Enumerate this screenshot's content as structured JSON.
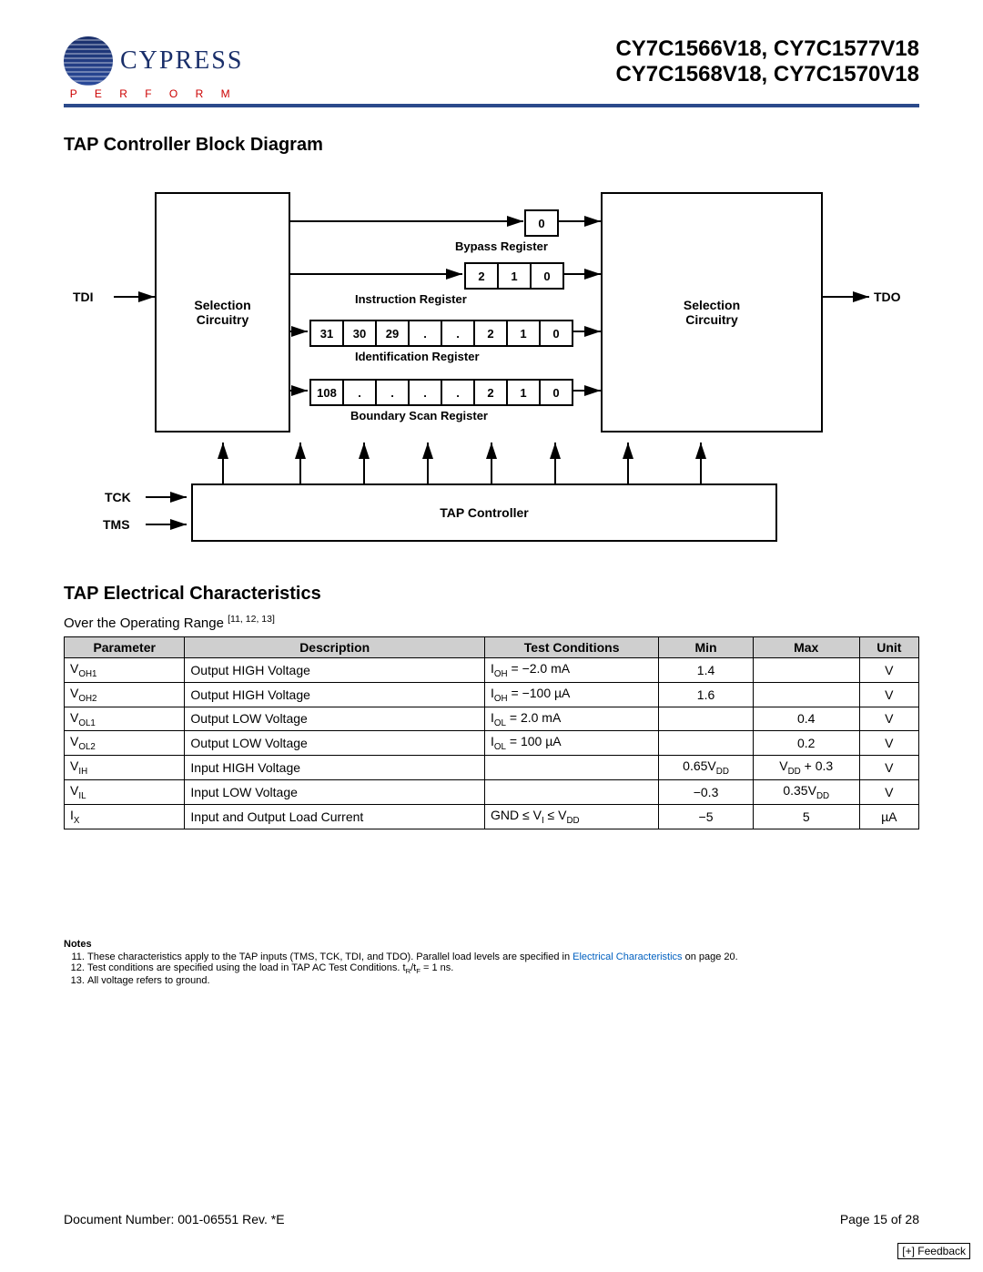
{
  "header": {
    "brand": "CYPRESS",
    "tagline": "P E R F O R M",
    "parts_line1": "CY7C1566V18, CY7C1577V18",
    "parts_line2": "CY7C1568V18, CY7C1570V18"
  },
  "diagram": {
    "title": "TAP Controller Block Diagram",
    "tdi": "TDI",
    "tdo": "TDO",
    "tck": "TCK",
    "tms": "TMS",
    "sel_left": "Selection\nCircuitry",
    "sel_right": "Selection\nCircuitry",
    "tap_ctrl": "TAP Controller",
    "bypass_label": "Bypass Register",
    "bypass_cells": [
      "0"
    ],
    "instr_label": "Instruction Register",
    "instr_cells": [
      "2",
      "1",
      "0"
    ],
    "ident_label": "Identification Register",
    "ident_cells": [
      "31",
      "30",
      "29",
      ".",
      ".",
      "2",
      "1",
      "0"
    ],
    "bscan_label": "Boundary Scan Register",
    "bscan_cells": [
      "108",
      ".",
      ".",
      ".",
      ".",
      "2",
      "1",
      "0"
    ]
  },
  "elec": {
    "title": "TAP Electrical Characteristics",
    "range_text": "Over the Operating Range ",
    "range_sup": "[11, 12, 13]",
    "columns": [
      "Parameter",
      "Description",
      "Test Conditions",
      "Min",
      "Max",
      "Unit"
    ],
    "rows": [
      {
        "p": "V",
        "psub": "OH1",
        "d": "Output HIGH Voltage",
        "tc": "I<sub>OH</sub> = −2.0 mA",
        "min": "1.4",
        "max": "",
        "u": "V"
      },
      {
        "p": "V",
        "psub": "OH2",
        "d": "Output HIGH Voltage",
        "tc": "I<sub>OH</sub> = −100 µA",
        "min": "1.6",
        "max": "",
        "u": "V"
      },
      {
        "p": "V",
        "psub": "OL1",
        "d": "Output LOW Voltage",
        "tc": "I<sub>OL</sub> = 2.0 mA",
        "min": "",
        "max": "0.4",
        "u": "V"
      },
      {
        "p": "V",
        "psub": "OL2",
        "d": "Output LOW Voltage",
        "tc": "I<sub>OL</sub> = 100 µA",
        "min": "",
        "max": "0.2",
        "u": "V"
      },
      {
        "p": "V",
        "psub": "IH",
        "d": "Input HIGH Voltage",
        "tc": "",
        "min": "0.65V<sub>DD</sub>",
        "max": "V<sub>DD</sub> + 0.3",
        "u": "V"
      },
      {
        "p": "V",
        "psub": "IL",
        "d": "Input LOW Voltage",
        "tc": "",
        "min": "−0.3",
        "max": "0.35V<sub>DD</sub>",
        "u": "V"
      },
      {
        "p": "I",
        "psub": "X",
        "d": "Input and Output Load Current",
        "tc": "GND ≤ V<sub>I</sub> ≤ V<sub>DD</sub>",
        "min": "−5",
        "max": "5",
        "u": "µA"
      }
    ]
  },
  "notes": {
    "title": "Notes",
    "n11": "These characteristics apply to the TAP inputs (TMS, TCK, TDI, and TDO). Parallel load levels are specified in ",
    "n11_link": "Electrical Characteristics",
    "n11_tail": " on page 20.",
    "n12": "Test conditions are specified using the load in TAP AC Test Conditions. t<sub>R</sub>/t<sub>F</sub> = 1 ns.",
    "n13": "All voltage refers to ground."
  },
  "footer": {
    "doc": "Document Number: 001-06551 Rev. *E",
    "page": "Page 15 of 28",
    "feedback": "[+] Feedback"
  }
}
